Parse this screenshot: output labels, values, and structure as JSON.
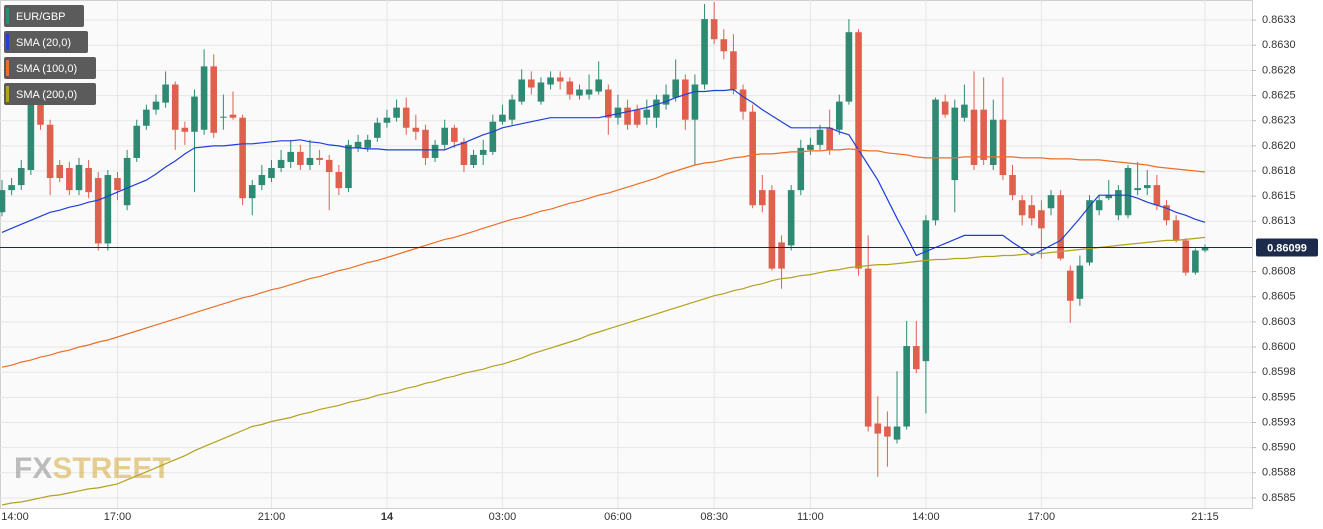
{
  "chart_data": {
    "type": "candlestick",
    "candles": {
      "name": "EUR/GBP",
      "up_color": "#2e8a72",
      "down_color": "#e0604e",
      "legend_color": "#2e8a72"
    },
    "categories": [
      "14:00",
      null,
      null,
      null,
      null,
      null,
      null,
      null,
      null,
      null,
      null,
      null,
      "17:00",
      null,
      null,
      null,
      null,
      null,
      null,
      null,
      null,
      null,
      null,
      null,
      null,
      null,
      null,
      null,
      "21:00",
      null,
      null,
      null,
      null,
      null,
      null,
      null,
      null,
      null,
      null,
      null,
      "14",
      null,
      null,
      null,
      null,
      null,
      null,
      null,
      null,
      null,
      null,
      null,
      "03:00",
      null,
      null,
      null,
      null,
      null,
      null,
      null,
      null,
      null,
      null,
      null,
      "06:00",
      null,
      null,
      null,
      null,
      null,
      null,
      null,
      null,
      null,
      "08:30",
      null,
      null,
      null,
      null,
      null,
      null,
      null,
      null,
      null,
      "11:00",
      null,
      null,
      null,
      null,
      null,
      null,
      null,
      null,
      null,
      null,
      null,
      "14:00",
      null,
      null,
      null,
      null,
      null,
      null,
      null,
      null,
      null,
      null,
      null,
      "17:00",
      null,
      null,
      null,
      null,
      null,
      null,
      null,
      null,
      null,
      null,
      null,
      null,
      null,
      null,
      null,
      null,
      "21:15"
    ],
    "open": [
      0.86134,
      0.86156,
      0.86161,
      0.86176,
      0.86241,
      0.86221,
      0.86181,
      0.86178,
      0.86156,
      0.86178,
      0.86168,
      0.86103,
      0.86168,
      0.86141,
      0.86188,
      0.8622,
      0.86236,
      0.86243,
      0.86261,
      0.86218,
      0.86214,
      0.86216,
      0.86279,
      0.86228,
      0.86231,
      0.86228,
      0.86148,
      0.86161,
      0.86168,
      0.86178,
      0.86184,
      0.86194,
      0.86181,
      0.86188,
      0.86186,
      0.86174,
      0.86158,
      0.86198,
      0.86198,
      0.86208,
      0.86223,
      0.86228,
      0.86238,
      0.86218,
      0.86216,
      0.86188,
      0.86201,
      0.86218,
      0.86204,
      0.86181,
      0.86191,
      0.86194,
      0.86224,
      0.86226,
      0.86244,
      0.86266,
      0.86244,
      0.86261,
      0.86268,
      0.86264,
      0.8625,
      0.86251,
      0.86254,
      0.86256,
      0.86228,
      0.86238,
      0.86236,
      0.86228,
      0.86228,
      0.86241,
      0.86248,
      0.86266,
      0.86226,
      0.86261,
      0.86326,
      0.86306,
      0.86294,
      0.86256,
      0.86234,
      0.86156,
      0.86156,
      0.86104,
      0.86101,
      0.86156,
      0.86196,
      0.86201,
      0.86218,
      0.86216,
      0.86244,
      0.86313,
      0.86078,
      0.85924,
      0.85921,
      0.85908,
      0.85921,
      0.86001,
      0.85986,
      0.86126,
      0.86244,
      0.86166,
      0.86228,
      0.86236,
      0.86236,
      0.86181,
      0.86226,
      0.86171,
      0.86146,
      0.86141,
      0.86136,
      0.86138,
      0.86151,
      0.86076,
      0.86048,
      0.86084,
      0.86136,
      0.86148,
      0.86131,
      0.86131,
      0.86156,
      0.86158,
      0.86161,
      0.86141,
      0.86126,
      0.86106,
      0.86074,
      0.86096
    ],
    "high": [
      0.86166,
      0.86168,
      0.86186,
      0.86251,
      0.86248,
      0.86226,
      0.86186,
      0.86184,
      0.86188,
      0.86186,
      0.86174,
      0.86176,
      0.86174,
      0.86196,
      0.86226,
      0.86241,
      0.86251,
      0.86274,
      0.86264,
      0.86224,
      0.86256,
      0.86296,
      0.86291,
      0.86251,
      0.86254,
      0.86231,
      0.86166,
      0.86181,
      0.86186,
      0.86196,
      0.86206,
      0.86201,
      0.86206,
      0.86196,
      0.86191,
      0.86181,
      0.86206,
      0.86211,
      0.86211,
      0.86228,
      0.86236,
      0.86246,
      0.86248,
      0.86231,
      0.86221,
      0.86206,
      0.86226,
      0.86221,
      0.86208,
      0.86196,
      0.86206,
      0.86231,
      0.86241,
      0.86251,
      0.86276,
      0.86274,
      0.86268,
      0.86274,
      0.86274,
      0.86268,
      0.86261,
      0.86271,
      0.86284,
      0.86261,
      0.86251,
      0.86246,
      0.86241,
      0.86246,
      0.86251,
      0.86261,
      0.86286,
      0.86271,
      0.86271,
      0.86341,
      0.86343,
      0.86316,
      0.86311,
      0.86261,
      0.86241,
      0.86171,
      0.86161,
      0.86111,
      0.86161,
      0.86206,
      0.86208,
      0.86221,
      0.86236,
      0.86251,
      0.86326,
      0.86316,
      0.86111,
      0.85951,
      0.85936,
      0.85976,
      0.86026,
      0.86026,
      0.86131,
      0.86248,
      0.86251,
      0.86246,
      0.86261,
      0.86274,
      0.86268,
      0.86246,
      0.86268,
      0.86181,
      0.86151,
      0.86151,
      0.86146,
      0.86156,
      0.86156,
      0.86081,
      0.86091,
      0.86151,
      0.86151,
      0.86166,
      0.86161,
      0.86181,
      0.86184,
      0.86176,
      0.86171,
      0.86146,
      0.86131,
      0.86108,
      0.86098,
      0.86102
    ],
    "low": [
      0.8613,
      0.86151,
      0.86156,
      0.86171,
      0.86216,
      0.86151,
      0.86164,
      0.86151,
      0.86151,
      0.86148,
      0.86096,
      0.86096,
      0.86146,
      0.86136,
      0.86184,
      0.86216,
      0.86231,
      0.86238,
      0.86196,
      0.86201,
      0.86154,
      0.86211,
      0.86208,
      0.86216,
      0.86226,
      0.86141,
      0.86131,
      0.86156,
      0.86164,
      0.86174,
      0.86178,
      0.86176,
      0.86176,
      0.86181,
      0.86136,
      0.86151,
      0.86154,
      0.86194,
      0.86194,
      0.86204,
      0.86218,
      0.86224,
      0.86211,
      0.86206,
      0.86181,
      0.86184,
      0.86196,
      0.86198,
      0.86174,
      0.86178,
      0.86181,
      0.86191,
      0.86221,
      0.86221,
      0.86241,
      0.86251,
      0.86241,
      0.86256,
      0.86256,
      0.86246,
      0.86246,
      0.86246,
      0.86251,
      0.86211,
      0.86221,
      0.86216,
      0.86218,
      0.86221,
      0.86218,
      0.86236,
      0.86244,
      0.86216,
      0.86181,
      0.86256,
      0.86301,
      0.86286,
      0.86251,
      0.86226,
      0.86138,
      0.86134,
      0.86076,
      0.86058,
      0.86096,
      0.86151,
      0.86191,
      0.86196,
      0.86191,
      0.86211,
      0.86241,
      0.86071,
      0.85916,
      0.85871,
      0.85881,
      0.85904,
      0.85918,
      0.85974,
      0.85934,
      0.86121,
      0.86228,
      0.86134,
      0.86224,
      0.86176,
      0.86181,
      0.86176,
      0.86166,
      0.86146,
      0.86121,
      0.86121,
      0.86088,
      0.86131,
      0.86086,
      0.86024,
      0.86041,
      0.86081,
      0.86131,
      0.86146,
      0.86126,
      0.86128,
      0.86151,
      0.86151,
      0.86136,
      0.86121,
      0.86104,
      0.86071,
      0.86072,
      0.86094
    ],
    "close": [
      0.86156,
      0.86161,
      0.86178,
      0.86241,
      0.86221,
      0.86168,
      0.86168,
      0.86156,
      0.86181,
      0.86154,
      0.86103,
      0.86171,
      0.86156,
      0.86188,
      0.8622,
      0.86236,
      0.86244,
      0.86261,
      0.86216,
      0.86214,
      0.86249,
      0.86279,
      0.86213,
      0.86229,
      0.86228,
      0.86148,
      0.86161,
      0.86171,
      0.86178,
      0.86186,
      0.86194,
      0.86181,
      0.86188,
      0.86186,
      0.86174,
      0.86158,
      0.86201,
      0.86204,
      0.86206,
      0.86223,
      0.86228,
      0.86238,
      0.86218,
      0.86214,
      0.86188,
      0.86201,
      0.86218,
      0.86204,
      0.86181,
      0.86191,
      0.86196,
      0.86224,
      0.86231,
      0.86246,
      0.86266,
      0.86258,
      0.86263,
      0.86268,
      0.86264,
      0.86251,
      0.86256,
      0.86256,
      0.86266,
      0.86228,
      0.86238,
      0.86221,
      0.86221,
      0.86236,
      0.86246,
      0.86251,
      0.86266,
      0.86226,
      0.86261,
      0.86326,
      0.86306,
      0.86294,
      0.86256,
      0.86234,
      0.86141,
      0.86141,
      0.86078,
      0.86078,
      0.86156,
      0.86198,
      0.86201,
      0.86216,
      0.86196,
      0.86244,
      0.86313,
      0.86078,
      0.85921,
      0.85914,
      0.85911,
      0.85921,
      0.86001,
      0.85978,
      0.86126,
      0.86246,
      0.86231,
      0.86238,
      0.86241,
      0.86181,
      0.86186,
      0.86226,
      0.86171,
      0.86151,
      0.86131,
      0.86128,
      0.86118,
      0.86151,
      0.86088,
      0.86046,
      0.86081,
      0.86146,
      0.86146,
      0.86151,
      0.86156,
      0.86178,
      0.86158,
      0.86161,
      0.86141,
      0.86126,
      0.86106,
      0.86074,
      0.86096,
      0.86099
    ],
    "series": [
      {
        "name": "SMA (20,0)",
        "color": "#1f3fd9",
        "values": [
          0.86114,
          0.86118,
          0.86122,
          0.86126,
          0.8613,
          0.86134,
          0.86136,
          0.86139,
          0.86141,
          0.86144,
          0.86146,
          0.8615,
          0.86154,
          0.86158,
          0.86162,
          0.86166,
          0.86172,
          0.86179,
          0.86185,
          0.86192,
          0.86198,
          0.86199,
          0.862,
          0.862,
          0.86201,
          0.86202,
          0.86202,
          0.86203,
          0.86204,
          0.86205,
          0.86205,
          0.86206,
          0.86204,
          0.86203,
          0.86201,
          0.862,
          0.86198,
          0.86198,
          0.86197,
          0.86197,
          0.86196,
          0.86196,
          0.86196,
          0.86196,
          0.86196,
          0.86196,
          0.86196,
          0.862,
          0.86203,
          0.86207,
          0.86211,
          0.86214,
          0.86218,
          0.8622,
          0.86222,
          0.86224,
          0.86226,
          0.86228,
          0.86228,
          0.86228,
          0.86228,
          0.86228,
          0.86228,
          0.8623,
          0.86232,
          0.86234,
          0.86236,
          0.86238,
          0.86241,
          0.86244,
          0.86248,
          0.86251,
          0.86254,
          0.86254,
          0.86255,
          0.86255,
          0.86256,
          0.86249,
          0.86243,
          0.86236,
          0.8623,
          0.86224,
          0.86218,
          0.86218,
          0.86218,
          0.86218,
          0.86218,
          0.86214,
          0.86211,
          0.86196,
          0.86181,
          0.86166,
          0.86147,
          0.86128,
          0.8611,
          0.86091,
          0.86095,
          0.86099,
          0.86103,
          0.86107,
          0.86111,
          0.86111,
          0.86111,
          0.86111,
          0.86111,
          0.86104,
          0.86098,
          0.86091,
          0.86096,
          0.86101,
          0.86106,
          0.86117,
          0.86128,
          0.8614,
          0.86151,
          0.86151,
          0.86151,
          0.86151,
          0.86148,
          0.86144,
          0.86141,
          0.86138,
          0.86134,
          0.86131,
          0.86127,
          0.86124
        ]
      },
      {
        "name": "SMA (100,0)",
        "color": "#e8702a",
        "values": [
          0.8598,
          0.85982,
          0.85985,
          0.85987,
          0.8599,
          0.85992,
          0.85995,
          0.85997,
          0.86,
          0.86002,
          0.86005,
          0.86007,
          0.8601,
          0.86013,
          0.86016,
          0.86019,
          0.86022,
          0.86025,
          0.86028,
          0.86031,
          0.86034,
          0.86037,
          0.8604,
          0.86043,
          0.86046,
          0.86049,
          0.86051,
          0.86054,
          0.86057,
          0.86059,
          0.86062,
          0.86065,
          0.86068,
          0.8607,
          0.86073,
          0.86076,
          0.86078,
          0.86081,
          0.86084,
          0.86086,
          0.86089,
          0.86092,
          0.86095,
          0.86098,
          0.86101,
          0.86104,
          0.86107,
          0.86109,
          0.86112,
          0.86115,
          0.86118,
          0.86121,
          0.86124,
          0.86127,
          0.86129,
          0.86132,
          0.86135,
          0.86137,
          0.8614,
          0.86143,
          0.86145,
          0.86148,
          0.86151,
          0.86153,
          0.86156,
          0.86159,
          0.86162,
          0.86165,
          0.86168,
          0.86172,
          0.86175,
          0.86178,
          0.86181,
          0.86183,
          0.86184,
          0.86186,
          0.86188,
          0.86189,
          0.86191,
          0.86192,
          0.86192,
          0.86193,
          0.86194,
          0.86194,
          0.86195,
          0.86195,
          0.86196,
          0.86196,
          0.86197,
          0.86196,
          0.86195,
          0.86195,
          0.86193,
          0.86192,
          0.86191,
          0.86189,
          0.86188,
          0.86188,
          0.86188,
          0.86188,
          0.86189,
          0.86189,
          0.86189,
          0.86189,
          0.86189,
          0.86189,
          0.86188,
          0.86188,
          0.86188,
          0.86187,
          0.86187,
          0.86187,
          0.86186,
          0.86186,
          0.86186,
          0.86185,
          0.86184,
          0.86183,
          0.86182,
          0.86181,
          0.86179,
          0.86178,
          0.86177,
          0.86176,
          0.86175,
          0.86174
        ]
      },
      {
        "name": "SMA (200,0)",
        "color": "#b3a21e",
        "values": [
          0.85843,
          0.85845,
          0.85846,
          0.85848,
          0.8585,
          0.85852,
          0.85853,
          0.85855,
          0.85857,
          0.85859,
          0.8586,
          0.85862,
          0.85864,
          0.85868,
          0.85872,
          0.85876,
          0.8588,
          0.85884,
          0.85888,
          0.85892,
          0.85897,
          0.85901,
          0.85905,
          0.85909,
          0.85913,
          0.85917,
          0.85921,
          0.85923,
          0.85926,
          0.85928,
          0.8593,
          0.85933,
          0.85935,
          0.85938,
          0.8594,
          0.85942,
          0.85945,
          0.85947,
          0.85949,
          0.85952,
          0.85954,
          0.85956,
          0.85959,
          0.85961,
          0.85964,
          0.85966,
          0.85969,
          0.85971,
          0.85974,
          0.85976,
          0.85978,
          0.85981,
          0.85983,
          0.85986,
          0.85989,
          0.85993,
          0.85996,
          0.85999,
          0.86002,
          0.86005,
          0.86008,
          0.86012,
          0.86015,
          0.86018,
          0.86021,
          0.86024,
          0.86027,
          0.8603,
          0.86033,
          0.86036,
          0.86039,
          0.86042,
          0.86045,
          0.86048,
          0.86051,
          0.86053,
          0.86056,
          0.86058,
          0.86061,
          0.86063,
          0.86066,
          0.86068,
          0.86069,
          0.86071,
          0.86072,
          0.86074,
          0.86076,
          0.86077,
          0.86079,
          0.8608,
          0.86081,
          0.86082,
          0.86082,
          0.86083,
          0.86084,
          0.86085,
          0.86086,
          0.86087,
          0.86087,
          0.86088,
          0.86088,
          0.86089,
          0.8609,
          0.8609,
          0.86091,
          0.86091,
          0.86092,
          0.86093,
          0.86093,
          0.86094,
          0.86095,
          0.86096,
          0.86097,
          0.86098,
          0.86099,
          0.861,
          0.86101,
          0.86102,
          0.86103,
          0.86104,
          0.86105,
          0.86106,
          0.86106,
          0.86107,
          0.86108,
          0.86109
        ]
      }
    ],
    "last_price": {
      "value": 0.86099,
      "color": "#1c2b4b"
    },
    "ylim": [
      0.8584,
      0.86345
    ],
    "yticks": [
      {
        "value": 0.86325,
        "label": "0.8633"
      },
      {
        "value": 0.863,
        "label": "0.8630"
      },
      {
        "value": 0.86275,
        "label": "0.8628"
      },
      0.8625,
      {
        "value": 0.86225,
        "label": "0.8623"
      },
      {
        "value": 0.862,
        "label": "0.8620"
      },
      {
        "value": 0.86175,
        "label": "0.8618"
      },
      0.8615,
      {
        "value": 0.86125,
        "label": "0.8613"
      },
      {
        "value": 0.86075,
        "label": "0.8608"
      },
      0.8605,
      {
        "value": 0.86025,
        "label": "0.8603"
      },
      {
        "value": 0.86,
        "label": "0.8600"
      },
      {
        "value": 0.85975,
        "label": "0.8598"
      },
      0.8595,
      {
        "value": 0.85925,
        "label": "0.8593"
      },
      {
        "value": 0.859,
        "label": "0.8590"
      },
      {
        "value": 0.85875,
        "label": "0.8588"
      },
      0.8585
    ],
    "grid": true,
    "legend": "top-left",
    "watermark": {
      "prefix": "FX",
      "suffix": "STREET"
    }
  }
}
